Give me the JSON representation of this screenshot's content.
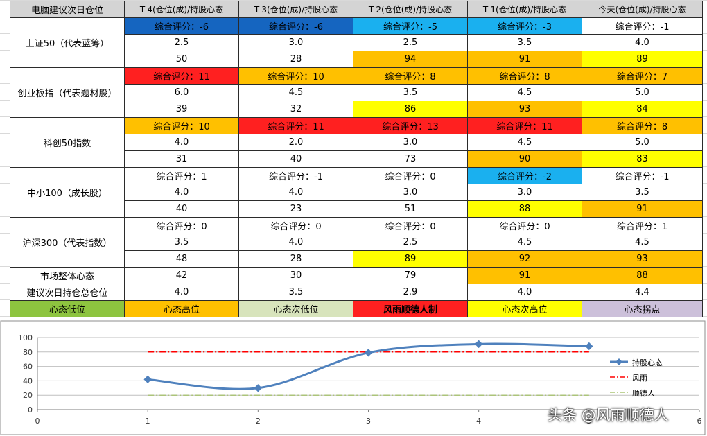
{
  "colors": {
    "dark_blue": "#1565C0",
    "light_blue": "#1AB0EF",
    "orange": "#FFC000",
    "yellow": "#FFFF00",
    "red": "#FF2020",
    "green": "#8DC43F",
    "sage": "#D8E4BC",
    "lavender": "#CCC0DA",
    "white": "#FFFFFF",
    "series_line": "#4F81BD",
    "wind_line": "#FF0000",
    "shun_line": "#9BBB59"
  },
  "header": [
    "电脑建议次日仓位",
    "T-4(仓位(成)/持股心态",
    "T-3(仓位(成)/持股心态",
    "T-2(仓位(成)/持股心态",
    "T-1(仓位(成)/持股心态",
    "今天(仓位(成)/持股心态"
  ],
  "groups": [
    {
      "label": "上证50（代表蓝筹）",
      "rows": [
        {
          "cells": [
            "综合评分：-6",
            "综合评分：-6",
            "综合评分：-5",
            "综合评分：-3",
            "综合评分：-1"
          ],
          "colors": [
            "dark_blue",
            "dark_blue",
            "light_blue",
            "light_blue",
            "white"
          ]
        },
        {
          "cells": [
            "2.5",
            "3.0",
            "2.5",
            "3.5",
            "4.0"
          ],
          "colors": [
            "white",
            "white",
            "white",
            "white",
            "white"
          ]
        },
        {
          "cells": [
            "50",
            "28",
            "94",
            "91",
            "89"
          ],
          "colors": [
            "white",
            "white",
            "orange",
            "orange",
            "yellow"
          ]
        }
      ]
    },
    {
      "label": "创业板指（代表题材股）",
      "rows": [
        {
          "cells": [
            "综合评分：11",
            "综合评分：10",
            "综合评分：8",
            "综合评分：8",
            "综合评分：7"
          ],
          "colors": [
            "red",
            "orange",
            "orange",
            "orange",
            "orange"
          ]
        },
        {
          "cells": [
            "6.0",
            "4.5",
            "3.5",
            "4.5",
            "5.0"
          ],
          "colors": [
            "white",
            "white",
            "white",
            "white",
            "white"
          ]
        },
        {
          "cells": [
            "39",
            "32",
            "86",
            "93",
            "84"
          ],
          "colors": [
            "white",
            "white",
            "yellow",
            "orange",
            "yellow"
          ]
        }
      ]
    },
    {
      "label": "科创50指数",
      "rows": [
        {
          "cells": [
            "综合评分：10",
            "综合评分：11",
            "综合评分：13",
            "综合评分：11",
            "综合评分：8"
          ],
          "colors": [
            "orange",
            "red",
            "red",
            "red",
            "orange"
          ]
        },
        {
          "cells": [
            "4.0",
            "2.0",
            "3.0",
            "4.5",
            "5.0"
          ],
          "colors": [
            "white",
            "white",
            "white",
            "white",
            "white"
          ]
        },
        {
          "cells": [
            "31",
            "40",
            "73",
            "90",
            "83"
          ],
          "colors": [
            "white",
            "white",
            "white",
            "orange",
            "yellow"
          ]
        }
      ]
    },
    {
      "label": "中小100（成长股）",
      "rows": [
        {
          "cells": [
            "综合评分：1",
            "综合评分：-1",
            "综合评分：0",
            "综合评分：-2",
            "综合评分：-1"
          ],
          "colors": [
            "white",
            "white",
            "white",
            "light_blue",
            "white"
          ]
        },
        {
          "cells": [
            "4.0",
            "4.0",
            "3.0",
            "3.0",
            "3.5"
          ],
          "colors": [
            "white",
            "white",
            "white",
            "white",
            "white"
          ]
        },
        {
          "cells": [
            "40",
            "23",
            "51",
            "88",
            "91"
          ],
          "colors": [
            "white",
            "white",
            "white",
            "yellow",
            "orange"
          ]
        }
      ]
    },
    {
      "label": "沪深300（代表指数）",
      "rows": [
        {
          "cells": [
            "综合评分：0",
            "综合评分：0",
            "综合评分：0",
            "综合评分：0",
            "综合评分：1"
          ],
          "colors": [
            "white",
            "white",
            "white",
            "white",
            "white"
          ]
        },
        {
          "cells": [
            "3.5",
            "4.0",
            "2.5",
            "4.5",
            "4.5"
          ],
          "colors": [
            "white",
            "white",
            "white",
            "white",
            "white"
          ]
        },
        {
          "cells": [
            "48",
            "28",
            "89",
            "92",
            "93"
          ],
          "colors": [
            "white",
            "white",
            "yellow",
            "orange",
            "orange"
          ]
        }
      ]
    }
  ],
  "market_row": {
    "label": "市场整体心态",
    "cells": [
      "42",
      "30",
      "79",
      "91",
      "88"
    ],
    "colors": [
      "white",
      "white",
      "white",
      "orange",
      "orange"
    ]
  },
  "position_row": {
    "label": "建议次日持仓总仓位",
    "cells": [
      "4.0",
      "3.5",
      "2.9",
      "4.0",
      "4.4"
    ]
  },
  "legend_row": [
    {
      "text": "心态低位",
      "color": "green",
      "bold": false
    },
    {
      "text": "心态高位",
      "color": "orange",
      "bold": false
    },
    {
      "text": "心态次低位",
      "color": "sage",
      "bold": false
    },
    {
      "text": "风雨顺德人制",
      "color": "red",
      "bold": true
    },
    {
      "text": "心态次高位",
      "color": "yellow",
      "bold": false
    },
    {
      "text": "心态拐点",
      "color": "lavender",
      "bold": false
    }
  ],
  "chart_data": {
    "type": "line",
    "xlim": [
      0,
      6
    ],
    "ylim": [
      0,
      100
    ],
    "x_ticks": [
      "0",
      "1",
      "2",
      "3",
      "4",
      "5",
      "6"
    ],
    "y_ticks": [
      "0",
      "20",
      "40",
      "60",
      "80",
      "100"
    ],
    "grid": true,
    "legend_position": "right",
    "series": [
      {
        "name": "持股心态",
        "style": "smooth-marker",
        "x": [
          1,
          2,
          3,
          4,
          5
        ],
        "y": [
          42,
          30,
          79,
          91,
          88
        ]
      },
      {
        "name": "风雨",
        "style": "dash-dot",
        "x": [
          1,
          5
        ],
        "y": [
          80,
          80
        ]
      },
      {
        "name": "顺德人",
        "style": "dash-dot",
        "x": [
          1,
          5
        ],
        "y": [
          20,
          20
        ]
      }
    ]
  },
  "watermark": "头条 @风雨顺德人"
}
